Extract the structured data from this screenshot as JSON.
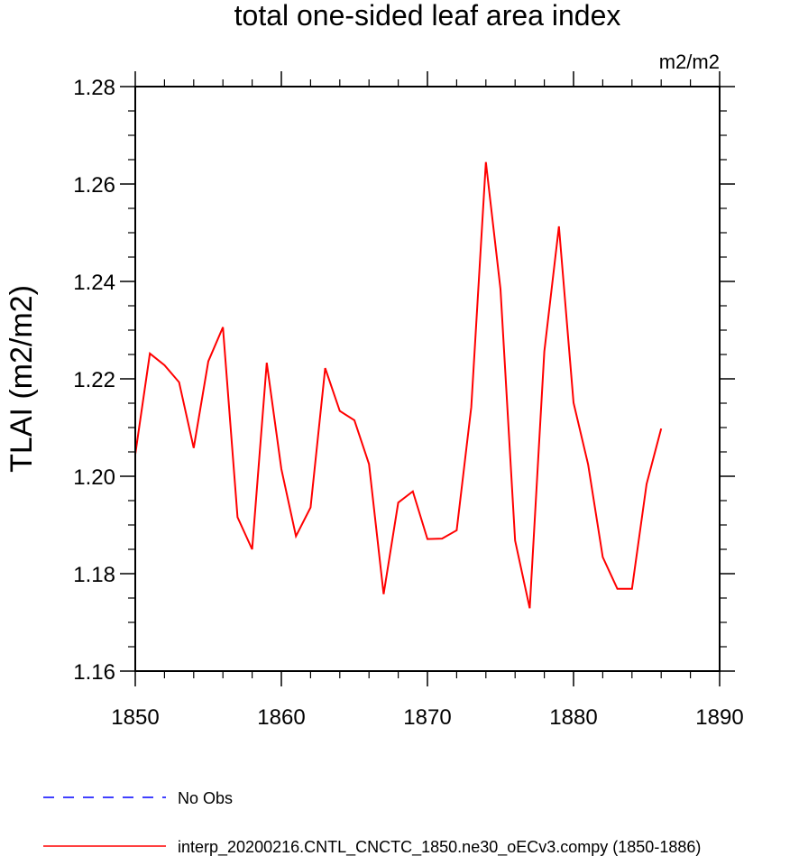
{
  "chart_data": {
    "type": "line",
    "title": "total one-sided leaf area index",
    "units": "m2/m2",
    "ylabel": "TLAI  (m2/m2)",
    "xlabel": "",
    "xlim": [
      1850,
      1890
    ],
    "ylim": [
      1.16,
      1.28
    ],
    "x_ticks": [
      "1850",
      "1860",
      "1870",
      "1880",
      "1890"
    ],
    "y_ticks": [
      "1.16",
      "1.18",
      "1.20",
      "1.22",
      "1.24",
      "1.26",
      "1.28"
    ],
    "grid": false,
    "legend_position": "bottom",
    "series": [
      {
        "name": "interp_20200216.CNTL_CNCTC_1850.ne30_oECv3.compy (1850-1886)",
        "color": "#ff0000",
        "style": "solid",
        "x": [
          1850,
          1851,
          1852,
          1853,
          1854,
          1855,
          1856,
          1857,
          1858,
          1859,
          1860,
          1861,
          1862,
          1863,
          1864,
          1865,
          1866,
          1867,
          1868,
          1869,
          1870,
          1871,
          1872,
          1873,
          1874,
          1875,
          1876,
          1877,
          1878,
          1879,
          1880,
          1881,
          1882,
          1883,
          1884,
          1885,
          1886
        ],
        "y": [
          1.2045,
          1.2252,
          1.2228,
          1.2193,
          1.2058,
          1.2236,
          1.2306,
          1.1916,
          1.185,
          1.2233,
          1.2015,
          1.1877,
          1.1936,
          1.2222,
          1.2134,
          1.2115,
          1.2025,
          1.1758,
          1.1946,
          1.1969,
          1.1871,
          1.1872,
          1.1889,
          1.2142,
          1.2645,
          1.2384,
          1.1868,
          1.1729,
          1.2256,
          1.2513,
          1.2151,
          1.2024,
          1.1834,
          1.1769,
          1.1769,
          1.1984,
          1.2098
        ]
      }
    ],
    "legend": [
      {
        "label": "No Obs",
        "color": "#0000ff",
        "style": "dashed"
      },
      {
        "label": "interp_20200216.CNTL_CNCTC_1850.ne30_oECv3.compy (1850-1886)",
        "color": "#ff0000",
        "style": "solid"
      }
    ]
  }
}
